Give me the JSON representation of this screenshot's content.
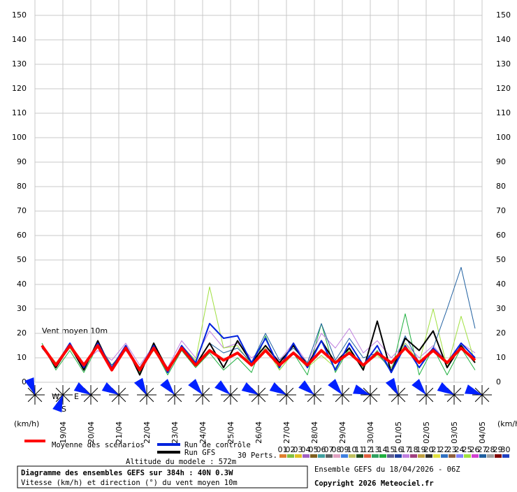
{
  "chart_data": {
    "type": "line",
    "title": "Diagramme des ensembles GEFS sur 384h : 40N 0.3W",
    "subtitle": "Vitesse (km/h) et direction (°) du vent moyen 10m",
    "run_info": "Ensemble GEFS du 18/04/2026 - 06Z",
    "copyright": "Copyright 2026 Meteociel.fr",
    "altitude": "Altitude du modele : 572m",
    "annotation": "Vent moyen 10m",
    "y_label": "(km/h)",
    "compass": [
      "W",
      "E",
      "S"
    ],
    "ylim": [
      0,
      150
    ],
    "yticks": [
      0,
      10,
      20,
      30,
      40,
      50,
      60,
      70,
      80,
      90,
      100,
      110,
      120,
      130,
      140,
      150
    ],
    "grid": true,
    "xlim": [
      0,
      384
    ],
    "xticks": [
      {
        "value": 24,
        "label": "19/04"
      },
      {
        "value": 48,
        "label": "20/04"
      },
      {
        "value": 72,
        "label": "21/04"
      },
      {
        "value": 96,
        "label": "22/04"
      },
      {
        "value": 120,
        "label": "23/04"
      },
      {
        "value": 144,
        "label": "24/04"
      },
      {
        "value": 168,
        "label": "25/04"
      },
      {
        "value": 192,
        "label": "26/04"
      },
      {
        "value": 216,
        "label": "27/04"
      },
      {
        "value": 240,
        "label": "28/04"
      },
      {
        "value": 264,
        "label": "29/04"
      },
      {
        "value": 288,
        "label": "30/04"
      },
      {
        "value": 312,
        "label": "01/05"
      },
      {
        "value": 336,
        "label": "02/05"
      },
      {
        "value": 360,
        "label": "03/05"
      },
      {
        "value": 384,
        "label": "04/05"
      }
    ],
    "x": [
      6,
      18,
      30,
      42,
      54,
      66,
      78,
      90,
      102,
      114,
      126,
      138,
      150,
      162,
      174,
      186,
      198,
      210,
      222,
      234,
      246,
      258,
      270,
      282,
      294,
      306,
      318,
      330,
      342,
      354,
      366,
      378
    ],
    "series": [
      {
        "name": "Moyenne des scénarios",
        "color": "#ff0000",
        "width": 4,
        "values": [
          15,
          7,
          15,
          7,
          15,
          5,
          14,
          5,
          14,
          5,
          14,
          7,
          13,
          9,
          12,
          7,
          13,
          7,
          12,
          7,
          13,
          8,
          12,
          7,
          12,
          8,
          14,
          8,
          13,
          8,
          14,
          9
        ]
      },
      {
        "name": "Run de contrôle",
        "color": "#0022dd",
        "width": 2,
        "values": [
          15,
          7,
          16,
          6,
          16,
          6,
          15,
          5,
          15,
          4,
          15,
          8,
          24,
          18,
          19,
          8,
          18,
          6,
          16,
          6,
          17,
          5,
          16,
          7,
          15,
          4,
          15,
          6,
          14,
          8,
          16,
          10
        ]
      },
      {
        "name": "Run GFS",
        "color": "#000000",
        "width": 2,
        "values": [
          15,
          6,
          15,
          5,
          17,
          5,
          15,
          3,
          16,
          5,
          14,
          7,
          16,
          6,
          17,
          8,
          15,
          8,
          15,
          7,
          17,
          8,
          14,
          5,
          25,
          4,
          18,
          13,
          21,
          6,
          15,
          8
        ]
      }
    ],
    "perturbations_label": "30 Perts.",
    "perturbations": [
      {
        "name": "01",
        "color": "#e08030"
      },
      {
        "name": "02",
        "color": "#80c040"
      },
      {
        "name": "03",
        "color": "#e0c020"
      },
      {
        "name": "04",
        "color": "#a060c0"
      },
      {
        "name": "05",
        "color": "#806020"
      },
      {
        "name": "06",
        "color": "#40a0a0"
      },
      {
        "name": "07",
        "color": "#606060"
      },
      {
        "name": "08",
        "color": "#e0a0c0"
      },
      {
        "name": "09",
        "color": "#4080e0"
      },
      {
        "name": "10",
        "color": "#c0c060"
      },
      {
        "name": "11",
        "color": "#205020"
      },
      {
        "name": "12",
        "color": "#e06040"
      },
      {
        "name": "13",
        "color": "#30a060"
      },
      {
        "name": "14",
        "color": "#20b040",
        "values": [
          16,
          5,
          13,
          4,
          15,
          5,
          15,
          4,
          14,
          3,
          13,
          6,
          12,
          5,
          10,
          4,
          19,
          5,
          12,
          3,
          24,
          4,
          14,
          6,
          13,
          4,
          28,
          3,
          14,
          3,
          14,
          5
        ]
      },
      {
        "name": "15",
        "color": "#606090"
      },
      {
        "name": "16",
        "color": "#2040a0"
      },
      {
        "name": "17",
        "color": "#c080e0",
        "values": [
          15,
          7,
          14,
          8,
          13,
          9,
          16,
          7,
          15,
          6,
          17,
          10,
          21,
          14,
          16,
          10,
          14,
          9,
          16,
          8,
          20,
          14,
          22,
          12,
          17,
          10,
          16,
          10,
          15,
          8,
          16,
          12
        ]
      },
      {
        "name": "18",
        "color": "#a04080"
      },
      {
        "name": "19",
        "color": "#c0a040"
      },
      {
        "name": "20",
        "color": "#303030"
      },
      {
        "name": "21",
        "color": "#e0e040"
      },
      {
        "name": "22",
        "color": "#3070c0"
      },
      {
        "name": "23",
        "color": "#906040"
      },
      {
        "name": "24",
        "color": "#8080ff"
      },
      {
        "name": "25",
        "color": "#a0e040",
        "values": [
          15,
          8,
          14,
          6,
          16,
          7,
          14,
          6,
          13,
          5,
          15,
          9,
          39,
          14,
          15,
          7,
          14,
          5,
          12,
          6,
          11,
          6,
          13,
          7,
          11,
          6,
          16,
          8,
          30,
          6,
          27,
          8
        ]
      },
      {
        "name": "26",
        "color": "#d040d0"
      },
      {
        "name": "27",
        "color": "#2060a0",
        "values": [
          14,
          7,
          15,
          6,
          15,
          7,
          13,
          6,
          15,
          4,
          14,
          7,
          16,
          12,
          14,
          8,
          20,
          9,
          14,
          8,
          24,
          9,
          18,
          10,
          12,
          5,
          19,
          8,
          14,
          30,
          47,
          22
        ]
      },
      {
        "name": "28",
        "color": "#a0a0a0"
      },
      {
        "name": "29",
        "color": "#800000"
      },
      {
        "name": "30",
        "color": "#2040c0"
      }
    ],
    "wind_direction": {
      "x": [
        0,
        24,
        48,
        72,
        96,
        120,
        144,
        168,
        192,
        216,
        240,
        264,
        288,
        312,
        336,
        360,
        384
      ],
      "values": [
        340,
        200,
        300,
        300,
        330,
        320,
        320,
        310,
        300,
        300,
        310,
        320,
        290,
        330,
        320,
        300,
        290
      ],
      "color": "#0020ff"
    }
  }
}
